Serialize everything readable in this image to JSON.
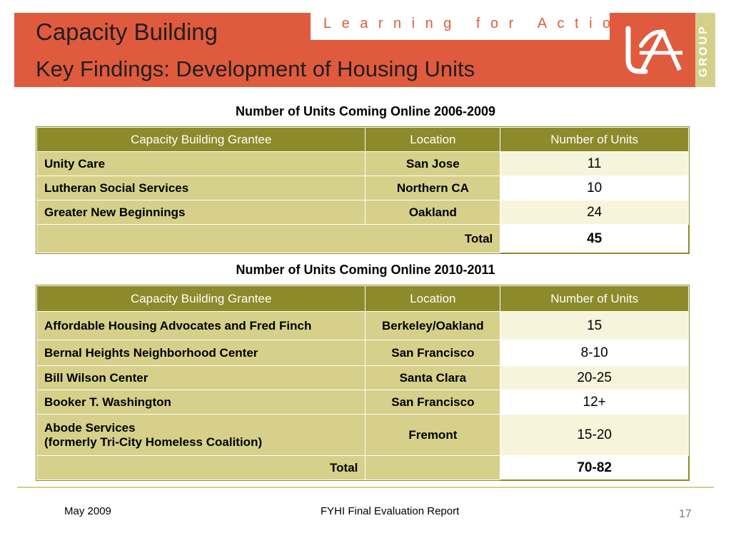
{
  "header": {
    "title_line1": "Capacity Building",
    "title_line2": "Key Findings: Development of Housing Units",
    "tagline": "Learning for Action",
    "logo_icon": "lfa-logo-icon",
    "group_label": "GROUP",
    "colors": {
      "banner": "#e05a3d",
      "accent": "#d4d08a",
      "table_header": "#8c8a2a"
    }
  },
  "table1": {
    "caption": "Number of Units Coming Online 2006-2009",
    "headers": [
      "Capacity Building Grantee",
      "Location",
      "Number of Units"
    ],
    "rows": [
      {
        "grantee": "Unity Care",
        "location": "San Jose",
        "units": "11"
      },
      {
        "grantee": "Lutheran Social Services",
        "location": "Northern CA",
        "units": "10"
      },
      {
        "grantee": "Greater New Beginnings",
        "location": "Oakland",
        "units": "24"
      }
    ],
    "total_label": "Total",
    "total_value": "45"
  },
  "table2": {
    "caption": "Number of Units Coming Online 2010-2011",
    "headers": [
      "Capacity Building Grantee",
      "Location",
      "Number of Units"
    ],
    "rows": [
      {
        "grantee": "Affordable Housing Advocates and Fred Finch",
        "grantee_line2": "",
        "location": "Berkeley/Oakland",
        "units": "15"
      },
      {
        "grantee": "Bernal Heights Neighborhood Center",
        "grantee_line2": "",
        "location": "San Francisco",
        "units": "8-10"
      },
      {
        "grantee": "Bill Wilson Center",
        "grantee_line2": "",
        "location": "Santa Clara",
        "units": "20-25"
      },
      {
        "grantee": "Booker T. Washington",
        "grantee_line2": "",
        "location": "San Francisco",
        "units": "12+"
      },
      {
        "grantee": "Abode Services",
        "grantee_line2": "(formerly Tri-City Homeless Coalition)",
        "location": "Fremont",
        "units": "15-20"
      }
    ],
    "total_label": "Total",
    "total_value": "70-82"
  },
  "footer": {
    "date": "May 2009",
    "report": "FYHI Final Evaluation Report",
    "page": "17"
  }
}
